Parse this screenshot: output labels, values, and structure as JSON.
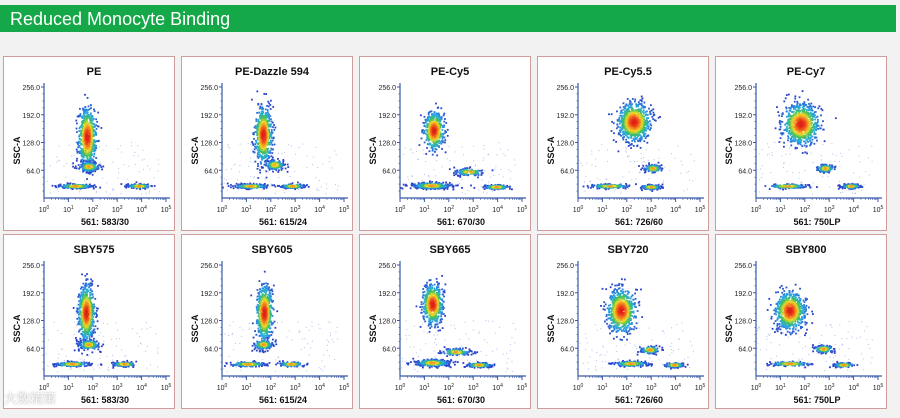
{
  "header": {
    "title": "Reduced Monocyte Binding"
  },
  "watermark": {
    "text": "大数精策"
  },
  "chart_data": [
    {
      "type": "scatter",
      "title": "PE",
      "xlabel": "561: 583/30",
      "ylabel": "SSC-A",
      "xscale": "log",
      "xlim": [
        1,
        100000
      ],
      "ylim": [
        0,
        256
      ],
      "xticks": [
        "10^0",
        "10^1",
        "10^2",
        "10^3",
        "10^4",
        "10^5"
      ],
      "yticks": [
        "64.0",
        "128.0",
        "192.0",
        "256.0"
      ],
      "populations": [
        {
          "name": "",
          "x": 60,
          "y": 140,
          "spread_x": 0.18,
          "spread_y": 65,
          "n": 650
        },
        {
          "name": "",
          "x": 70,
          "y": 72,
          "spread_x": 0.22,
          "spread_y": 12,
          "n": 150
        },
        {
          "name": "",
          "x": 20,
          "y": 27,
          "spread_x": 0.35,
          "spread_y": 5,
          "n": 200
        },
        {
          "name": "",
          "x": 8000,
          "y": 27,
          "spread_x": 0.25,
          "spread_y": 5,
          "n": 130
        }
      ]
    },
    {
      "type": "scatter",
      "title": "PE-Dazzle 594",
      "xlabel": "561: 615/24",
      "ylabel": "SSC-A",
      "xscale": "log",
      "xlim": [
        1,
        100000
      ],
      "ylim": [
        0,
        256
      ],
      "xticks": [
        "10^0",
        "10^1",
        "10^2",
        "10^3",
        "10^4",
        "10^5"
      ],
      "yticks": [
        "64.0",
        "128.0",
        "192.0",
        "256.0"
      ],
      "populations": [
        {
          "name": "",
          "x": 50,
          "y": 145,
          "spread_x": 0.17,
          "spread_y": 62,
          "n": 650
        },
        {
          "name": "",
          "x": 150,
          "y": 76,
          "spread_x": 0.2,
          "spread_y": 12,
          "n": 150
        },
        {
          "name": "",
          "x": 15,
          "y": 27,
          "spread_x": 0.35,
          "spread_y": 5,
          "n": 200
        },
        {
          "name": "",
          "x": 800,
          "y": 27,
          "spread_x": 0.25,
          "spread_y": 5,
          "n": 130
        }
      ]
    },
    {
      "type": "scatter",
      "title": "PE-Cy5",
      "xlabel": "561: 670/30",
      "ylabel": "SSC-A",
      "xscale": "log",
      "xlim": [
        1,
        100000
      ],
      "ylim": [
        0,
        256
      ],
      "xticks": [
        "10^0",
        "10^1",
        "10^2",
        "10^3",
        "10^4",
        "10^5"
      ],
      "yticks": [
        "64.0",
        "128.0",
        "192.0",
        "256.0"
      ],
      "populations": [
        {
          "name": "",
          "x": 25,
          "y": 155,
          "spread_x": 0.2,
          "spread_y": 42,
          "n": 550
        },
        {
          "name": "",
          "x": 20,
          "y": 28,
          "spread_x": 0.4,
          "spread_y": 7,
          "n": 350
        },
        {
          "name": "",
          "x": 700,
          "y": 60,
          "spread_x": 0.3,
          "spread_y": 8,
          "n": 120
        },
        {
          "name": "",
          "x": 9000,
          "y": 25,
          "spread_x": 0.25,
          "spread_y": 5,
          "n": 200
        }
      ]
    },
    {
      "type": "scatter",
      "title": "PE-Cy5.5",
      "xlabel": "561: 726/60",
      "ylabel": "SSC-A",
      "xscale": "log",
      "xlim": [
        1,
        100000
      ],
      "ylim": [
        0,
        256
      ],
      "xticks": [
        "10^0",
        "10^1",
        "10^2",
        "10^3",
        "10^4",
        "10^5"
      ],
      "yticks": [
        "64.0",
        "128.0",
        "192.0",
        "256.0"
      ],
      "populations": [
        {
          "name": "",
          "x": 200,
          "y": 175,
          "spread_x": 0.32,
          "spread_y": 42,
          "n": 800
        },
        {
          "name": "",
          "x": 1200,
          "y": 68,
          "spread_x": 0.18,
          "spread_y": 9,
          "n": 140
        },
        {
          "name": "",
          "x": 1000,
          "y": 25,
          "spread_x": 0.2,
          "spread_y": 5,
          "n": 150
        },
        {
          "name": "",
          "x": 20,
          "y": 27,
          "spread_x": 0.4,
          "spread_y": 5,
          "n": 150
        }
      ]
    },
    {
      "type": "scatter",
      "title": "PE-Cy7",
      "xlabel": "561: 750LP",
      "ylabel": "SSC-A",
      "xscale": "log",
      "xlim": [
        1,
        100000
      ],
      "ylim": [
        0,
        256
      ],
      "xticks": [
        "10^0",
        "10^1",
        "10^2",
        "10^3",
        "10^4",
        "10^5"
      ],
      "yticks": [
        "64.0",
        "128.0",
        "192.0",
        "256.0"
      ],
      "populations": [
        {
          "name": "",
          "x": 70,
          "y": 170,
          "spread_x": 0.35,
          "spread_y": 45,
          "n": 850
        },
        {
          "name": "",
          "x": 700,
          "y": 68,
          "spread_x": 0.18,
          "spread_y": 9,
          "n": 130
        },
        {
          "name": "",
          "x": 8000,
          "y": 27,
          "spread_x": 0.2,
          "spread_y": 5,
          "n": 130
        },
        {
          "name": "",
          "x": 20,
          "y": 27,
          "spread_x": 0.4,
          "spread_y": 5,
          "n": 150
        }
      ]
    },
    {
      "type": "scatter",
      "title": "SBY575",
      "xlabel": "561: 583/30",
      "ylabel": "SSC-A",
      "xscale": "log",
      "xlim": [
        1,
        100000
      ],
      "ylim": [
        0,
        256
      ],
      "xticks": [
        "10^0",
        "10^1",
        "10^2",
        "10^3",
        "10^4",
        "10^5"
      ],
      "yticks": [
        "64.0",
        "128.0",
        "192.0",
        "256.0"
      ],
      "populations": [
        {
          "name": "",
          "x": 55,
          "y": 145,
          "spread_x": 0.16,
          "spread_y": 62,
          "n": 650
        },
        {
          "name": "",
          "x": 70,
          "y": 72,
          "spread_x": 0.22,
          "spread_y": 12,
          "n": 150
        },
        {
          "name": "",
          "x": 15,
          "y": 27,
          "spread_x": 0.35,
          "spread_y": 5,
          "n": 200
        },
        {
          "name": "",
          "x": 2000,
          "y": 27,
          "spread_x": 0.25,
          "spread_y": 5,
          "n": 130
        }
      ]
    },
    {
      "type": "scatter",
      "title": "SBY605",
      "xlabel": "561: 615/24",
      "ylabel": "SSC-A",
      "xscale": "log",
      "xlim": [
        1,
        100000
      ],
      "ylim": [
        0,
        256
      ],
      "xticks": [
        "10^0",
        "10^1",
        "10^2",
        "10^3",
        "10^4",
        "10^5"
      ],
      "yticks": [
        "64.0",
        "128.0",
        "192.0",
        "256.0"
      ],
      "populations": [
        {
          "name": "",
          "x": 55,
          "y": 145,
          "spread_x": 0.16,
          "spread_y": 62,
          "n": 650
        },
        {
          "name": "",
          "x": 50,
          "y": 72,
          "spread_x": 0.2,
          "spread_y": 12,
          "n": 150
        },
        {
          "name": "",
          "x": 12,
          "y": 27,
          "spread_x": 0.35,
          "spread_y": 5,
          "n": 200
        },
        {
          "name": "",
          "x": 700,
          "y": 27,
          "spread_x": 0.25,
          "spread_y": 5,
          "n": 130
        }
      ]
    },
    {
      "type": "scatter",
      "title": "SBY665",
      "xlabel": "561: 670/30",
      "ylabel": "SSC-A",
      "xscale": "log",
      "xlim": [
        1,
        100000
      ],
      "ylim": [
        0,
        256
      ],
      "xticks": [
        "10^0",
        "10^1",
        "10^2",
        "10^3",
        "10^4",
        "10^5"
      ],
      "yticks": [
        "64.0",
        "128.0",
        "192.0",
        "256.0"
      ],
      "populations": [
        {
          "name": "",
          "x": 22,
          "y": 165,
          "spread_x": 0.2,
          "spread_y": 45,
          "n": 600
        },
        {
          "name": "",
          "x": 22,
          "y": 30,
          "spread_x": 0.35,
          "spread_y": 8,
          "n": 300
        },
        {
          "name": "",
          "x": 200,
          "y": 55,
          "spread_x": 0.3,
          "spread_y": 8,
          "n": 120
        },
        {
          "name": "",
          "x": 1800,
          "y": 25,
          "spread_x": 0.25,
          "spread_y": 5,
          "n": 200
        }
      ]
    },
    {
      "type": "scatter",
      "title": "SBY720",
      "xlabel": "561: 726/60",
      "ylabel": "SSC-A",
      "xscale": "log",
      "xlim": [
        1,
        100000
      ],
      "ylim": [
        0,
        256
      ],
      "xticks": [
        "10^0",
        "10^1",
        "10^2",
        "10^3",
        "10^4",
        "10^5"
      ],
      "yticks": [
        "64.0",
        "128.0",
        "192.0",
        "256.0"
      ],
      "populations": [
        {
          "name": "",
          "x": 60,
          "y": 150,
          "spread_x": 0.28,
          "spread_y": 48,
          "n": 750
        },
        {
          "name": "",
          "x": 900,
          "y": 60,
          "spread_x": 0.2,
          "spread_y": 9,
          "n": 120
        },
        {
          "name": "",
          "x": 150,
          "y": 28,
          "spread_x": 0.35,
          "spread_y": 6,
          "n": 200
        },
        {
          "name": "",
          "x": 9000,
          "y": 25,
          "spread_x": 0.2,
          "spread_y": 5,
          "n": 150
        }
      ]
    },
    {
      "type": "scatter",
      "title": "SBY800",
      "xlabel": "561: 750LP",
      "ylabel": "SSC-A",
      "xscale": "log",
      "xlim": [
        1,
        100000
      ],
      "ylim": [
        0,
        256
      ],
      "xticks": [
        "10^0",
        "10^1",
        "10^2",
        "10^3",
        "10^4",
        "10^5"
      ],
      "yticks": [
        "64.0",
        "128.0",
        "192.0",
        "256.0"
      ],
      "populations": [
        {
          "name": "",
          "x": 25,
          "y": 150,
          "spread_x": 0.3,
          "spread_y": 42,
          "n": 750
        },
        {
          "name": "",
          "x": 600,
          "y": 62,
          "spread_x": 0.2,
          "spread_y": 9,
          "n": 130
        },
        {
          "name": "",
          "x": 4000,
          "y": 25,
          "spread_x": 0.2,
          "spread_y": 5,
          "n": 130
        },
        {
          "name": "",
          "x": 25,
          "y": 28,
          "spread_x": 0.4,
          "spread_y": 5,
          "n": 150
        }
      ]
    }
  ]
}
